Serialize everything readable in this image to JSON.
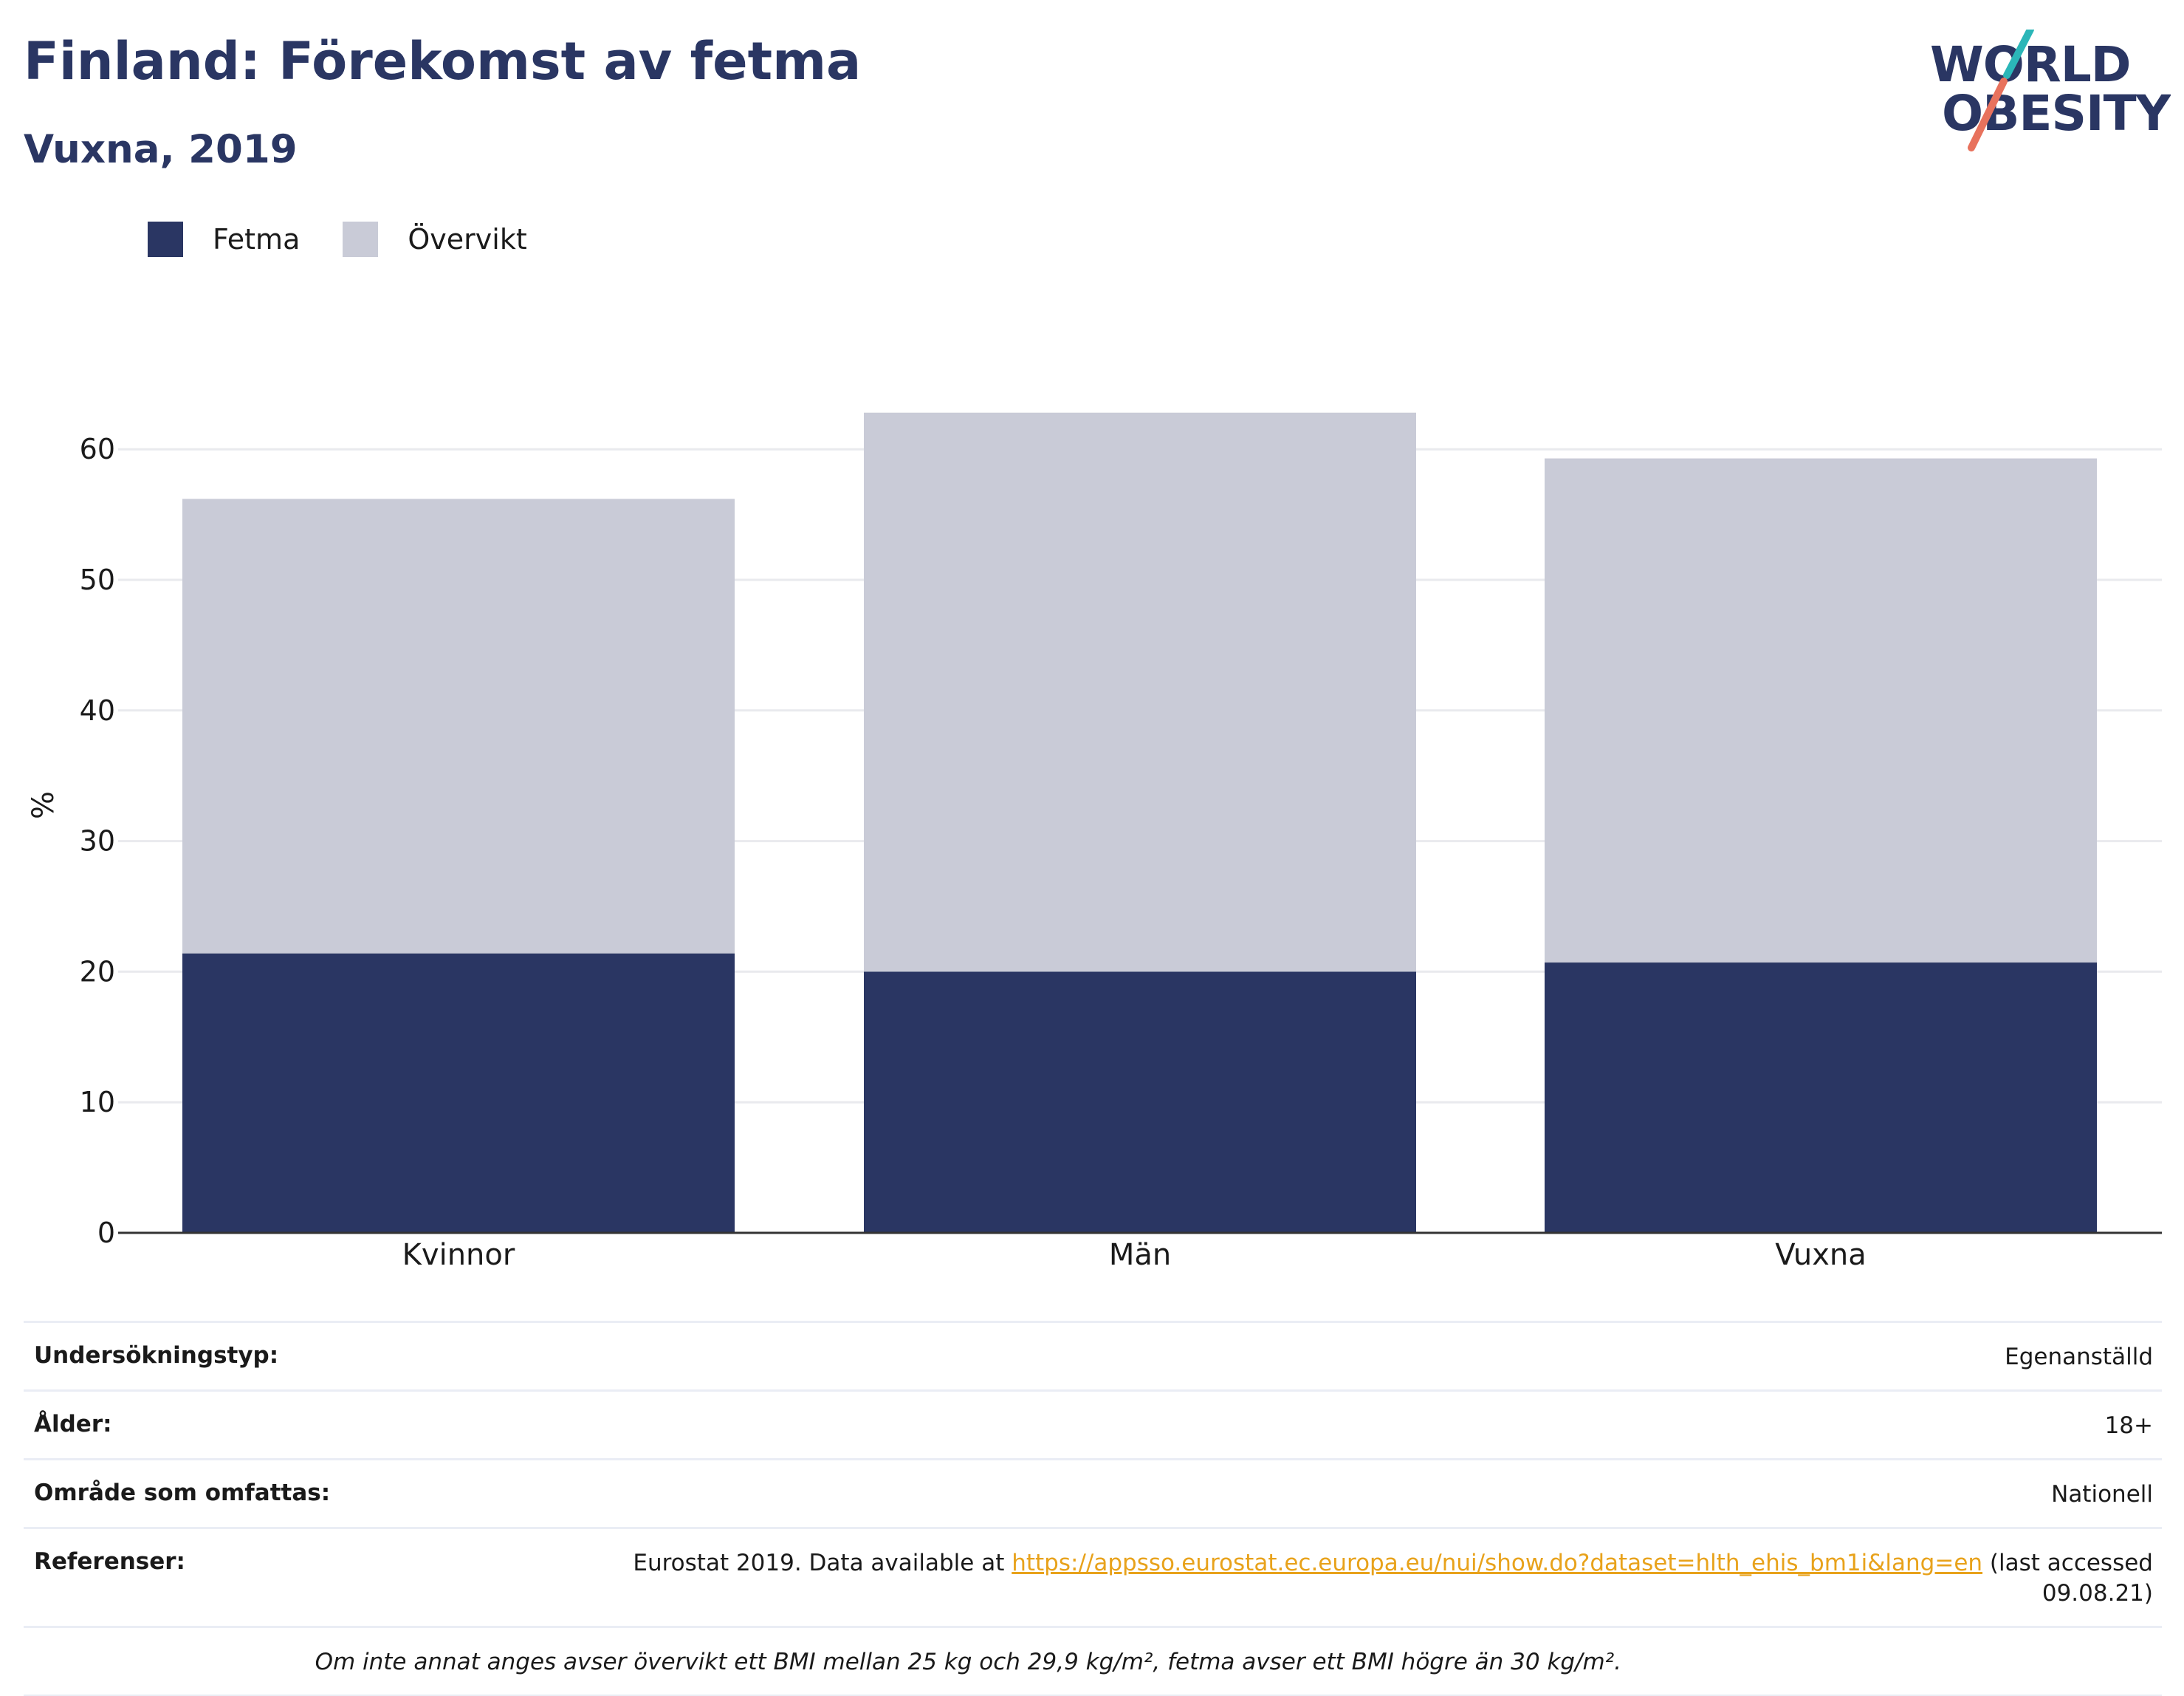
{
  "header": {
    "title": "Finland: Förekomst av fetma",
    "subtitle": "Vuxna, 2019"
  },
  "logo": {
    "line1": "WORLD",
    "line2": "OBESITY",
    "colors": {
      "text": "#2a3663",
      "slash_top": "#2bb6b8",
      "slash_bottom": "#e8725d"
    }
  },
  "colors": {
    "fetma": "#2a3663",
    "overvikt": "#c9cbd7",
    "grid": "#e9eaee",
    "axis": "#333333"
  },
  "chart_data": {
    "type": "bar",
    "stacked": true,
    "categories": [
      "Kvinnor",
      "Män",
      "Vuxna"
    ],
    "series": [
      {
        "name": "Fetma",
        "values": [
          21.4,
          20.0,
          20.7
        ]
      },
      {
        "name": "Övervikt",
        "values": [
          34.8,
          42.8,
          38.6
        ]
      }
    ],
    "ylabel": "%",
    "ylim": [
      0,
      65
    ],
    "yticks": [
      0,
      10,
      20,
      30,
      40,
      50,
      60
    ],
    "grid": true,
    "legend_position": "top-left"
  },
  "info": {
    "rows": [
      {
        "label": "Undersökningstyp:",
        "value": "Egenanställd"
      },
      {
        "label": "Ålder:",
        "value": "18+"
      },
      {
        "label": "Område som omfattas:",
        "value": "Nationell"
      }
    ],
    "references": {
      "label": "Referenser:",
      "prefix": "Eurostat 2019. Data available at ",
      "link": "https://appsso.eurostat.ec.europa.eu/nui/show.do?dataset=hlth_ehis_bm1i&lang=en",
      "suffix": " (last accessed 09.08.21)"
    },
    "note": "Om inte annat anges avser övervikt ett BMI mellan 25 kg och 29,9 kg/m², fetma avser ett BMI högre än 30 kg/m²."
  }
}
